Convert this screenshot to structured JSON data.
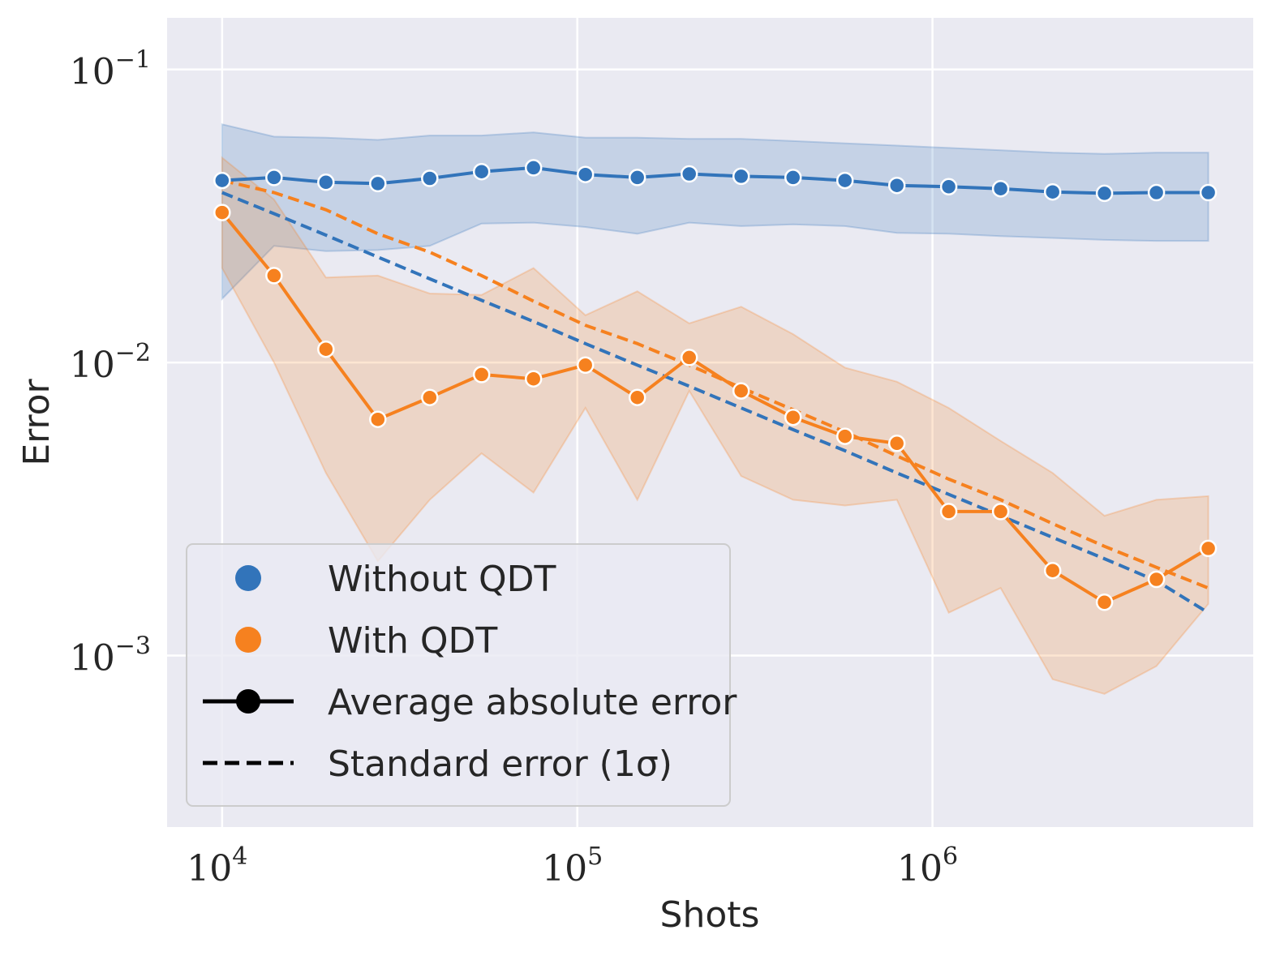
{
  "chart_data": {
    "type": "line",
    "xlabel": "Shots",
    "ylabel": "Error",
    "xscale": "log",
    "yscale": "log",
    "xlim": [
      7000,
      8000000
    ],
    "ylim": [
      0.00026,
      0.15
    ],
    "grid": true,
    "legend_position": "bottom-left",
    "x_ticks": [
      {
        "value": 10000,
        "base": "10",
        "exp": "4"
      },
      {
        "value": 100000,
        "base": "10",
        "exp": "5"
      },
      {
        "value": 1000000,
        "base": "10",
        "exp": "6"
      }
    ],
    "y_ticks": [
      {
        "value": 0.1,
        "base": "10",
        "exp": "−1"
      },
      {
        "value": 0.01,
        "base": "10",
        "exp": "−2"
      },
      {
        "value": 0.001,
        "base": "10",
        "exp": "−3"
      }
    ],
    "x": [
      10000,
      14000,
      19600,
      27440,
      38420,
      53780,
      75300,
      105400,
      147600,
      206600,
      289300,
      405000,
      567000,
      793800,
      1111000,
      1556000,
      2179000,
      3050000,
      4270000,
      5978000
    ],
    "series": [
      {
        "name": "Without QDT",
        "color": "#3274ba",
        "mean": [
          0.0418,
          0.0428,
          0.0412,
          0.0408,
          0.0425,
          0.0448,
          0.0462,
          0.0438,
          0.0428,
          0.044,
          0.0432,
          0.0428,
          0.0418,
          0.0402,
          0.0398,
          0.0392,
          0.0382,
          0.0378,
          0.038,
          0.038
        ],
        "band_upper": [
          0.065,
          0.059,
          0.0585,
          0.0575,
          0.0595,
          0.0595,
          0.061,
          0.0585,
          0.0585,
          0.058,
          0.058,
          0.057,
          0.056,
          0.055,
          0.054,
          0.053,
          0.052,
          0.0515,
          0.052,
          0.052
        ],
        "band_lower": [
          0.0165,
          0.025,
          0.024,
          0.0242,
          0.025,
          0.0298,
          0.03,
          0.029,
          0.0275,
          0.03,
          0.0292,
          0.0296,
          0.0292,
          0.0277,
          0.0275,
          0.027,
          0.0266,
          0.0262,
          0.026,
          0.026
        ],
        "std_error": [
          0.038,
          0.0322,
          0.0272,
          0.0229,
          0.0193,
          0.0163,
          0.0138,
          0.0116,
          0.0098,
          0.0083,
          0.007,
          0.0059,
          0.005,
          0.0042,
          0.00355,
          0.003,
          0.00253,
          0.00214,
          0.0018,
          0.0014
        ]
      },
      {
        "name": "With QDT",
        "color": "#f6811f",
        "mean": [
          0.0325,
          0.0198,
          0.0111,
          0.0064,
          0.0076,
          0.0091,
          0.0088,
          0.0098,
          0.0076,
          0.0104,
          0.008,
          0.0065,
          0.0056,
          0.0053,
          0.0031,
          0.0031,
          0.00195,
          0.00152,
          0.00182,
          0.00232
        ],
        "band_upper": [
          0.05,
          0.036,
          0.0195,
          0.0198,
          0.0172,
          0.017,
          0.021,
          0.0145,
          0.0175,
          0.0136,
          0.0155,
          0.0125,
          0.0096,
          0.0086,
          0.007,
          0.0054,
          0.0042,
          0.003,
          0.0034,
          0.0035
        ],
        "band_lower": [
          0.021,
          0.01,
          0.0042,
          0.0021,
          0.0034,
          0.0049,
          0.0036,
          0.007,
          0.0034,
          0.008,
          0.0041,
          0.0034,
          0.00325,
          0.0034,
          0.0014,
          0.0017,
          0.00083,
          0.00074,
          0.00092,
          0.0015
        ],
        "std_error": [
          0.0418,
          0.038,
          0.0332,
          0.0275,
          0.0238,
          0.0198,
          0.0162,
          0.0134,
          0.0116,
          0.0098,
          0.0082,
          0.0069,
          0.0058,
          0.0048,
          0.004,
          0.0034,
          0.00282,
          0.00236,
          0.002,
          0.0017
        ]
      }
    ],
    "legend": {
      "entries": [
        {
          "label": "Without QDT",
          "kind": "dot",
          "color": "#3274ba"
        },
        {
          "label": "With QDT",
          "kind": "dot",
          "color": "#f6811f"
        },
        {
          "label": "Average absolute error",
          "kind": "solid",
          "color": "#000000"
        },
        {
          "label": "Standard error (1σ)",
          "kind": "dashed",
          "color": "#000000"
        }
      ]
    }
  }
}
